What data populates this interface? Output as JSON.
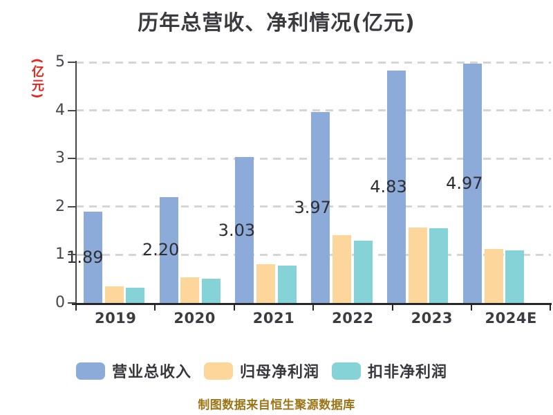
{
  "title": "历年总营收、净利情况(亿元)",
  "footer": "制图数据来自恒生聚源数据库",
  "colors": {
    "background": "#ffffff",
    "title_text": "#3b3b3f",
    "y_axis_title_red": "#e8231d",
    "gridline": "#d5d5d5",
    "axis_line": "#262626",
    "tick_label": "#46464a",
    "bar_value_label": "#2e2e32",
    "footer_text": "#9c7415",
    "series_blue": "#8dabd9",
    "series_orange": "#fcd69a",
    "series_teal": "#85d3d6"
  },
  "chart_data": {
    "type": "bar",
    "title": "历年总营收、净利情况(亿元)",
    "ylabel": "(亿元)",
    "xlabel": "",
    "categories": [
      "2019",
      "2020",
      "2021",
      "2022",
      "2023",
      "2024E"
    ],
    "series": [
      {
        "name": "营业总收入",
        "key": "revenue",
        "color": "#8dabd9",
        "values": [
          1.89,
          2.2,
          3.03,
          3.97,
          4.83,
          4.97
        ],
        "data_labels": [
          "1.89",
          "2.20",
          "3.03",
          "3.97",
          "4.83",
          "4.97"
        ]
      },
      {
        "name": "归母净利润",
        "key": "net-profit",
        "color": "#fcd69a",
        "values": [
          0.34,
          0.53,
          0.81,
          1.41,
          1.56,
          1.12
        ],
        "data_labels": []
      },
      {
        "name": "扣非净利润",
        "key": "non-gaap-net-profit",
        "color": "#85d3d6",
        "values": [
          0.31,
          0.5,
          0.77,
          1.3,
          1.55,
          1.09
        ],
        "data_labels": []
      }
    ],
    "ylim": [
      0,
      5
    ],
    "yticks": [
      "0",
      "1",
      "2",
      "3",
      "4",
      "5"
    ],
    "grid": "horizontal-dashed",
    "legend_position": "bottom",
    "footer": "制图数据来自恒生聚源数据库"
  }
}
